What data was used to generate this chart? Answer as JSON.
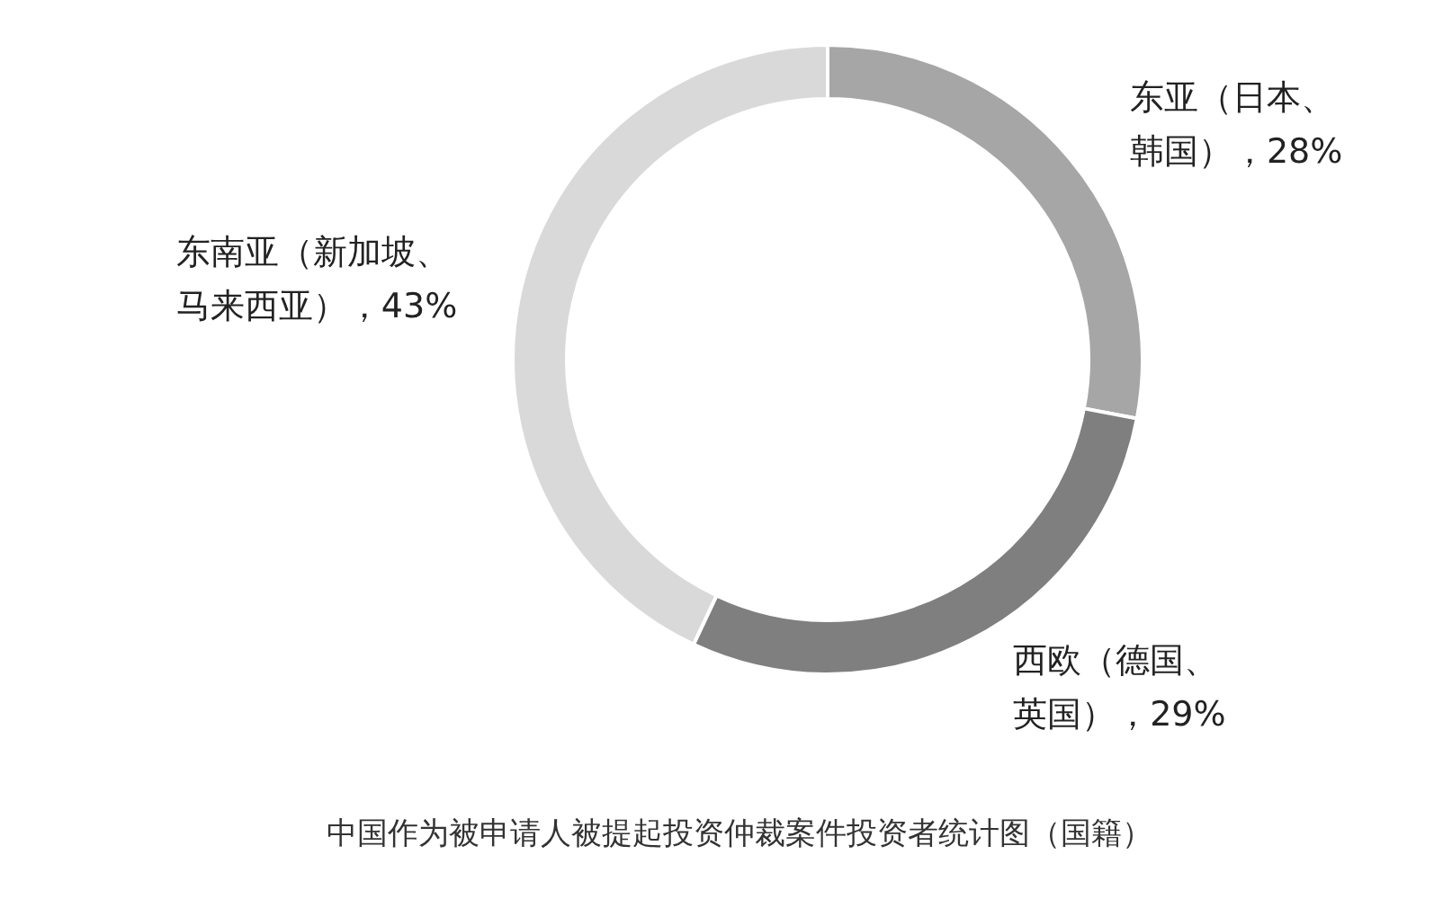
{
  "chart_data": {
    "type": "donut",
    "title": "中国作为被申请人被提起投资仲裁案件投资者统计图（国籍）",
    "categories": [
      "东亚（日本、韩国）",
      "西欧（德国、英国）",
      "东南亚（新加坡、马来西亚）"
    ],
    "values": [
      28,
      29,
      43
    ],
    "colors": [
      "#a6a6a6",
      "#7f7f80",
      "#d9d9d9"
    ],
    "value_labels": [
      "，28%",
      "，29%",
      "，43%"
    ]
  }
}
